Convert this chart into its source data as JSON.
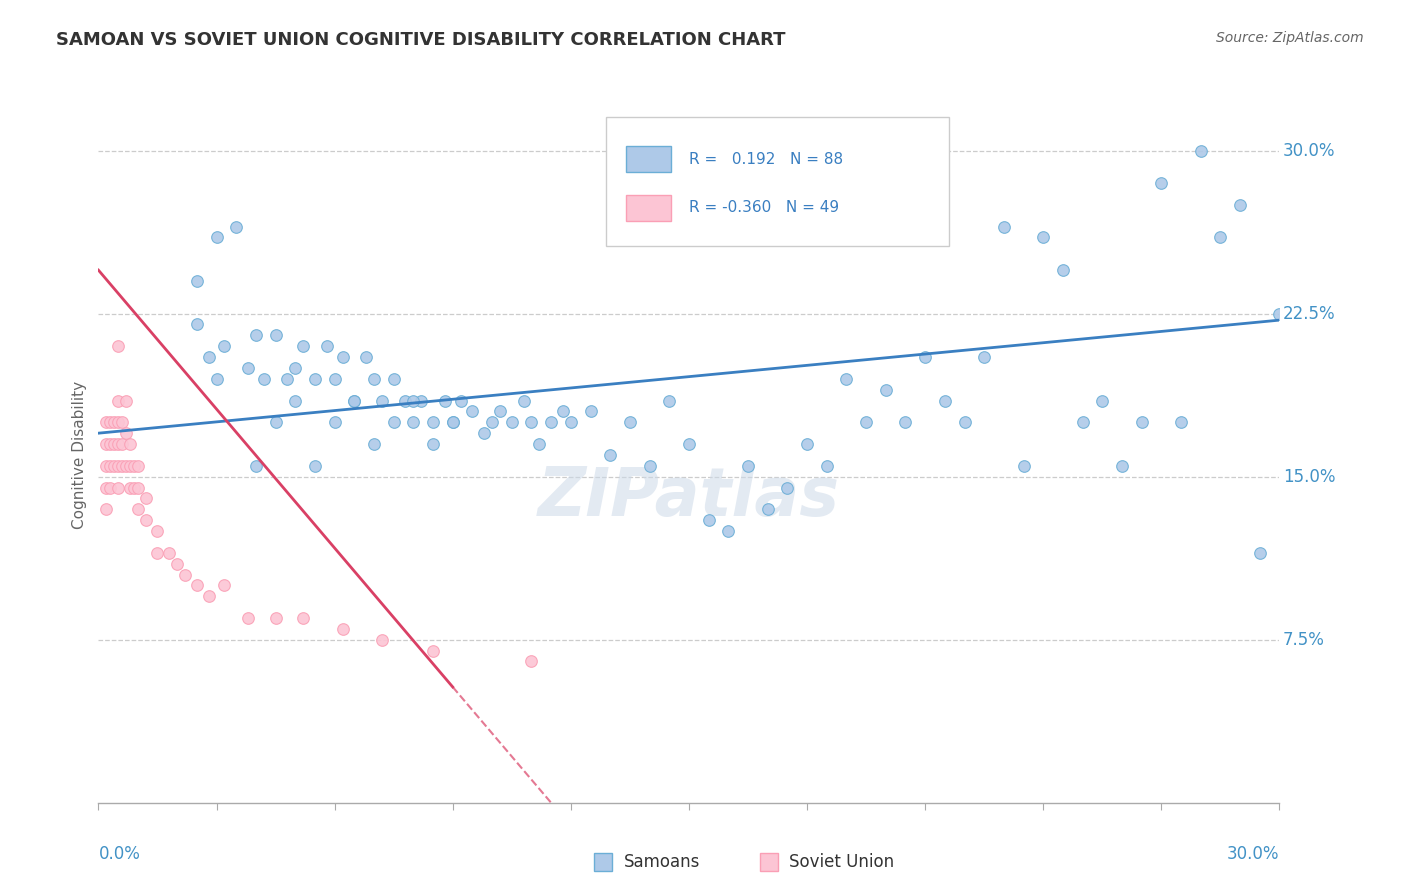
{
  "title": "SAMOAN VS SOVIET UNION COGNITIVE DISABILITY CORRELATION CHART",
  "source": "Source: ZipAtlas.com",
  "ylabel": "Cognitive Disability",
  "xlim": [
    0.0,
    0.3
  ],
  "ylim": [
    0.0,
    0.32
  ],
  "ytick_values": [
    0.075,
    0.15,
    0.225,
    0.3
  ],
  "ytick_labels": [
    "7.5%",
    "15.0%",
    "22.5%",
    "30.0%"
  ],
  "blue_face": "#aec9e8",
  "blue_edge": "#6baed6",
  "pink_face": "#fcc5d4",
  "pink_edge": "#fa9fb5",
  "trend_blue": "#3a7fc1",
  "trend_pink": "#d94065",
  "background": "#ffffff",
  "tick_color": "#4292c6",
  "label_color": "#4292c6",
  "blue_trend_start_y": 0.17,
  "blue_trend_end_y": 0.222,
  "pink_trend_x0": 0.0,
  "pink_trend_y0": 0.245,
  "pink_trend_x1": 0.115,
  "pink_trend_y1": 0.0,
  "samoan_x": [
    0.025,
    0.028,
    0.03,
    0.032,
    0.038,
    0.04,
    0.042,
    0.045,
    0.048,
    0.05,
    0.052,
    0.055,
    0.058,
    0.06,
    0.062,
    0.065,
    0.068,
    0.07,
    0.072,
    0.075,
    0.078,
    0.08,
    0.082,
    0.085,
    0.088,
    0.09,
    0.092,
    0.095,
    0.098,
    0.1,
    0.102,
    0.105,
    0.108,
    0.11,
    0.112,
    0.115,
    0.118,
    0.12,
    0.125,
    0.13,
    0.135,
    0.14,
    0.145,
    0.15,
    0.155,
    0.16,
    0.165,
    0.17,
    0.175,
    0.18,
    0.185,
    0.19,
    0.195,
    0.2,
    0.205,
    0.21,
    0.215,
    0.22,
    0.225,
    0.23,
    0.235,
    0.24,
    0.245,
    0.25,
    0.255,
    0.26,
    0.265,
    0.27,
    0.275,
    0.28,
    0.285,
    0.29,
    0.295,
    0.3,
    0.025,
    0.03,
    0.035,
    0.04,
    0.045,
    0.05,
    0.055,
    0.06,
    0.065,
    0.07,
    0.075,
    0.08,
    0.085,
    0.09
  ],
  "samoan_y": [
    0.22,
    0.205,
    0.195,
    0.21,
    0.2,
    0.215,
    0.195,
    0.215,
    0.195,
    0.2,
    0.21,
    0.195,
    0.21,
    0.195,
    0.205,
    0.185,
    0.205,
    0.195,
    0.185,
    0.195,
    0.185,
    0.175,
    0.185,
    0.175,
    0.185,
    0.175,
    0.185,
    0.18,
    0.17,
    0.175,
    0.18,
    0.175,
    0.185,
    0.175,
    0.165,
    0.175,
    0.18,
    0.175,
    0.18,
    0.16,
    0.175,
    0.155,
    0.185,
    0.165,
    0.13,
    0.125,
    0.155,
    0.135,
    0.145,
    0.165,
    0.155,
    0.195,
    0.175,
    0.19,
    0.175,
    0.205,
    0.185,
    0.175,
    0.205,
    0.265,
    0.155,
    0.26,
    0.245,
    0.175,
    0.185,
    0.155,
    0.175,
    0.285,
    0.175,
    0.3,
    0.26,
    0.275,
    0.115,
    0.225,
    0.24,
    0.26,
    0.265,
    0.155,
    0.175,
    0.185,
    0.155,
    0.175,
    0.185,
    0.165,
    0.175,
    0.185,
    0.165,
    0.175
  ],
  "soviet_x": [
    0.002,
    0.002,
    0.002,
    0.002,
    0.002,
    0.003,
    0.003,
    0.003,
    0.003,
    0.004,
    0.004,
    0.004,
    0.005,
    0.005,
    0.005,
    0.005,
    0.005,
    0.005,
    0.006,
    0.006,
    0.006,
    0.007,
    0.007,
    0.007,
    0.008,
    0.008,
    0.008,
    0.009,
    0.009,
    0.01,
    0.01,
    0.01,
    0.012,
    0.012,
    0.015,
    0.015,
    0.018,
    0.02,
    0.022,
    0.025,
    0.028,
    0.032,
    0.038,
    0.045,
    0.052,
    0.062,
    0.072,
    0.085,
    0.11
  ],
  "soviet_y": [
    0.175,
    0.165,
    0.155,
    0.145,
    0.135,
    0.175,
    0.165,
    0.155,
    0.145,
    0.175,
    0.165,
    0.155,
    0.21,
    0.185,
    0.175,
    0.165,
    0.155,
    0.145,
    0.175,
    0.165,
    0.155,
    0.185,
    0.17,
    0.155,
    0.165,
    0.155,
    0.145,
    0.155,
    0.145,
    0.155,
    0.145,
    0.135,
    0.14,
    0.13,
    0.125,
    0.115,
    0.115,
    0.11,
    0.105,
    0.1,
    0.095,
    0.1,
    0.085,
    0.085,
    0.085,
    0.08,
    0.075,
    0.07,
    0.065
  ]
}
